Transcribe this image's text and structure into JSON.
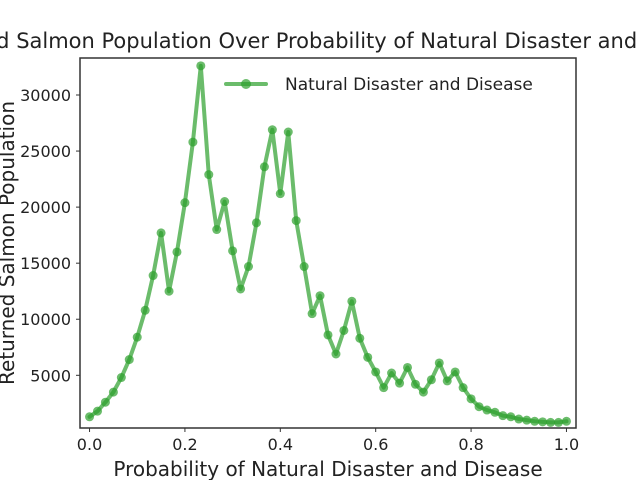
{
  "chart_data": {
    "type": "line",
    "title": "Returned Salmon Population Over Probability of Natural Disaster and Disease",
    "xlabel": "Probability of Natural Disaster and Disease",
    "ylabel": "Returned Salmon Population",
    "xlim": [
      -0.02,
      1.02
    ],
    "ylim": [
      300,
      33300
    ],
    "xticks": [
      0.0,
      0.2,
      0.4,
      0.6,
      0.8,
      1.0
    ],
    "xtick_labels": [
      "0.0",
      "0.2",
      "0.4",
      "0.6",
      "0.8",
      "1.0"
    ],
    "yticks": [
      5000,
      10000,
      15000,
      20000,
      25000,
      30000
    ],
    "ytick_labels": [
      "5000",
      "10000",
      "15000",
      "20000",
      "25000",
      "30000"
    ],
    "grid": false,
    "legend_position": "top-right",
    "series": [
      {
        "name": "Natural Disaster and Disease",
        "color": "#2ca02c",
        "marker": "circle",
        "x": [
          0.0,
          0.0167,
          0.0333,
          0.05,
          0.0667,
          0.0833,
          0.1,
          0.1167,
          0.1333,
          0.15,
          0.1667,
          0.1833,
          0.2,
          0.2167,
          0.2333,
          0.25,
          0.2667,
          0.2833,
          0.3,
          0.3167,
          0.3333,
          0.35,
          0.3667,
          0.3833,
          0.4,
          0.4167,
          0.4333,
          0.45,
          0.4667,
          0.4833,
          0.5,
          0.5167,
          0.5333,
          0.55,
          0.5667,
          0.5833,
          0.6,
          0.6167,
          0.6333,
          0.65,
          0.6667,
          0.6833,
          0.7,
          0.7167,
          0.7333,
          0.75,
          0.7667,
          0.7833,
          0.8,
          0.8167,
          0.8333,
          0.85,
          0.8667,
          0.8833,
          0.9,
          0.9167,
          0.9333,
          0.95,
          0.9667,
          0.9833,
          1.0
        ],
        "y": [
          1300,
          1800,
          2600,
          3500,
          4800,
          6400,
          8400,
          10800,
          13900,
          17700,
          12500,
          16000,
          20400,
          25800,
          32600,
          22900,
          18000,
          20500,
          16100,
          12700,
          14700,
          18600,
          23600,
          26900,
          21200,
          26700,
          18800,
          14700,
          10500,
          12100,
          8600,
          6900,
          9000,
          11600,
          8300,
          6600,
          5300,
          3900,
          5200,
          4300,
          5700,
          4200,
          3500,
          4600,
          6100,
          4500,
          5300,
          3900,
          2900,
          2200,
          1900,
          1700,
          1400,
          1300,
          1100,
          1000,
          900,
          850,
          800,
          800,
          900
        ]
      }
    ]
  }
}
